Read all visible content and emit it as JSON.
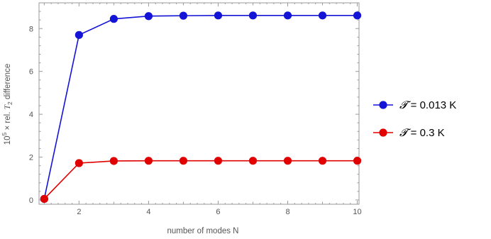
{
  "chart_data": {
    "type": "line",
    "xlabel": "number of modes N",
    "ylabel_main": "10",
    "ylabel_sup": "5",
    "ylabel_rest": " × rel. ",
    "ylabel_var": "T",
    "ylabel_sub": "2",
    "ylabel_tail": " difference",
    "xlim": [
      0.85,
      10.05
    ],
    "ylim": [
      -0.2,
      9.2
    ],
    "xticks_major": [
      2,
      4,
      6,
      8,
      10
    ],
    "yticks_major": [
      0,
      2,
      4,
      6,
      8
    ],
    "grid": false,
    "legend_position": "right",
    "series": [
      {
        "name_symbol": "𝓣",
        "name_rest": " = 0.013 K",
        "color": "#1414d6",
        "x": [
          1,
          2,
          3,
          4,
          5,
          6,
          7,
          8,
          9,
          10
        ],
        "y": [
          0.05,
          7.7,
          8.45,
          8.58,
          8.6,
          8.61,
          8.61,
          8.61,
          8.61,
          8.61
        ]
      },
      {
        "name_symbol": "𝓣",
        "name_rest": " = 0.3 K",
        "color": "#e00000",
        "x": [
          1,
          2,
          3,
          4,
          5,
          6,
          7,
          8,
          9,
          10
        ],
        "y": [
          0.05,
          1.72,
          1.82,
          1.83,
          1.83,
          1.83,
          1.83,
          1.83,
          1.83,
          1.83
        ]
      }
    ]
  }
}
